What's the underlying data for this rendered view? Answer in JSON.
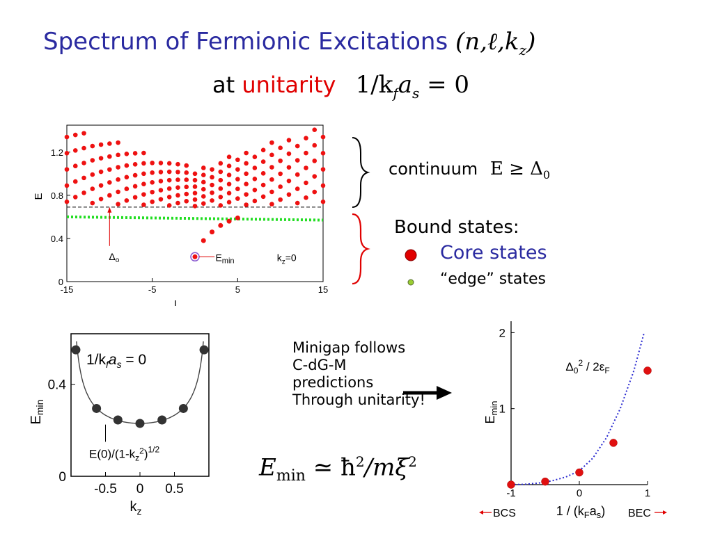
{
  "title": {
    "text": "Spectrum of Fermionic Excitations",
    "math": "(n,ℓ,k",
    "math_sub": "z",
    "math_close": ")"
  },
  "subtitle": {
    "prefix": "at",
    "highlight": "unitarity",
    "math_a": "1/k",
    "math_sub_f": "f",
    "math_b": "a",
    "math_sub_s": "s",
    "math_c": " = 0"
  },
  "annotations": {
    "continuum_word": "continuum",
    "continuum_math": "E ≥ Δ",
    "continuum_sub": "0",
    "bound_heading": "Bound states:",
    "core_states": "Core states",
    "edge_states": "“edge” states",
    "minigap_lines": [
      "Minigap follows",
      "C-dG-M",
      "predictions",
      "Through unitarity!"
    ],
    "emin_formula_a": "E",
    "emin_formula_sub": "min",
    "emin_formula_b": " ≃ ħ",
    "emin_formula_sup": "2",
    "emin_formula_c": "/mξ",
    "emin_formula_sup2": "2",
    "colors": {
      "title": "#2a2aa0",
      "highlight": "#e00000",
      "core": "#e00000",
      "edge": "#9acd32",
      "bracket_top": "#000000",
      "bracket_bottom": "#e00000"
    }
  },
  "chart_data": [
    {
      "type": "scatter",
      "title": "",
      "xlabel": "l",
      "ylabel": "E",
      "xlim": [
        -15,
        15
      ],
      "ylim": [
        0,
        1.45
      ],
      "xticks": [
        "-15",
        "-5",
        "5",
        "15"
      ],
      "yticks": [
        "0",
        "0.4",
        "0.8",
        "1.2"
      ],
      "annotations": {
        "gap": "Δ",
        "gap_sub": "o",
        "emin": "E",
        "emin_sub": "min",
        "kz": "k",
        "kz_sub": "z",
        "kz_val": "=0"
      },
      "gap_line": 0.69,
      "edge_line": {
        "x": [
          -15,
          15
        ],
        "y": [
          0.6,
          0.57
        ]
      },
      "series": [
        {
          "kind": "continuum",
          "x_step": 1,
          "branch_floor": {
            "x": [
              -15,
              -10,
              -5,
              0,
              5,
              10,
              15
            ],
            "y": [
              0.74,
              0.72,
              0.71,
              0.7,
              0.71,
              0.72,
              0.74
            ]
          },
          "branch_spacing_edge": 0.15,
          "branch_spacing_center": 0.06,
          "max_center": 1.05,
          "max_edge": 1.45
        },
        {
          "kind": "core",
          "x": [
            0,
            1,
            2,
            3,
            4,
            5
          ],
          "y": [
            0.23,
            0.38,
            0.46,
            0.52,
            0.56,
            0.59
          ]
        }
      ]
    },
    {
      "type": "scatter",
      "title": "",
      "xlabel": "k",
      "xlabel_sub": "z",
      "ylabel": "E",
      "ylabel_sub": "min",
      "xlim": [
        -1,
        1
      ],
      "ylim": [
        0,
        0.62
      ],
      "xticks": [
        "-0.5",
        "0",
        "0.5"
      ],
      "yticks": [
        "0",
        "0.4"
      ],
      "inset_label": "1/k",
      "inset_sub_f": "f",
      "inset_label_b": "a",
      "inset_sub_s": "s",
      "inset_label_c": " = 0",
      "curve_label": "E(0)/(1-k",
      "curve_label_sub": "z",
      "curve_label_sup": "2",
      "curve_label_c": ")",
      "curve_label_sup2": "1/2",
      "curve": {
        "e0": 0.23
      },
      "points": {
        "x": [
          -0.93,
          -0.63,
          -0.32,
          0.0,
          0.32,
          0.63,
          0.93
        ],
        "y": [
          0.55,
          0.295,
          0.245,
          0.23,
          0.245,
          0.295,
          0.55
        ]
      }
    },
    {
      "type": "scatter",
      "title": "",
      "xlabel": "1 / (k",
      "xlabel_sub": "F",
      "xlabel_b": "a",
      "xlabel_sub2": "s",
      "xlabel_c": ")",
      "ylabel": "E",
      "ylabel_sub": "min",
      "xlim": [
        -1,
        1
      ],
      "ylim": [
        0,
        2.15
      ],
      "xticks": [
        "-1",
        "0",
        "1"
      ],
      "yticks": [
        "1",
        "2"
      ],
      "left_label": "BCS",
      "right_label": "BEC",
      "curve_label": "Δ",
      "curve_label_sub": "0",
      "curve_label_sup": "2",
      "curve_label_c": " / 2ε",
      "curve_label_sub2": "F",
      "points": {
        "x": [
          -1.0,
          -0.5,
          0.0,
          0.5,
          1.0
        ],
        "y": [
          0.0,
          0.04,
          0.16,
          0.55,
          1.5
        ]
      },
      "dotted_curve": {
        "x": [
          -1.0,
          -0.8,
          -0.6,
          -0.4,
          -0.2,
          0.0,
          0.2,
          0.4,
          0.6,
          0.8,
          0.95
        ],
        "y": [
          0.0,
          0.005,
          0.02,
          0.05,
          0.1,
          0.18,
          0.35,
          0.62,
          1.0,
          1.5,
          2.0
        ]
      }
    }
  ]
}
